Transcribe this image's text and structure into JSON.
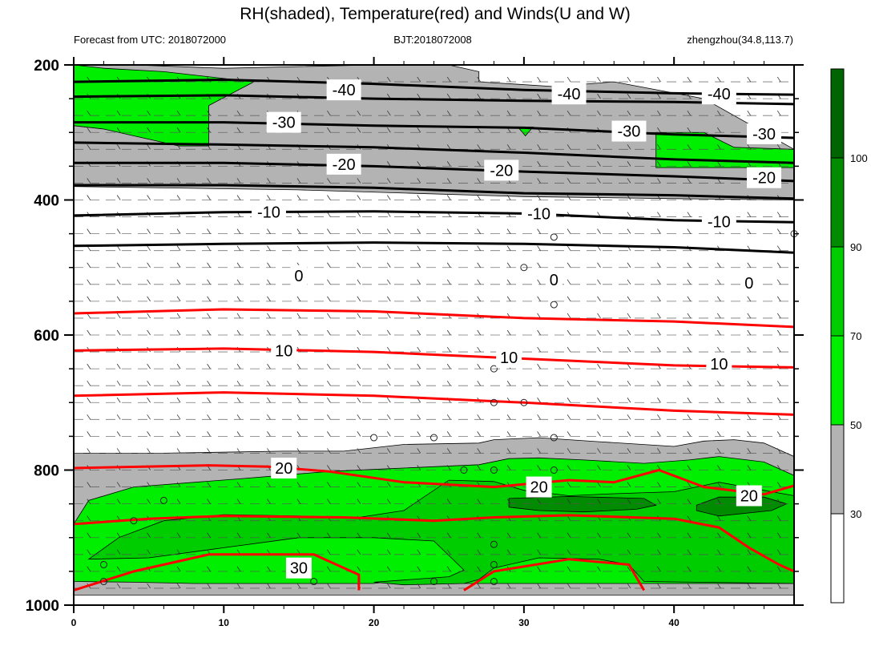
{
  "colors": {
    "rh_30_50": "#b3b3b3",
    "rh_50_70": "#00ee00",
    "rh_70_90": "#00cd00",
    "rh_90_100": "#008b00",
    "rh_100_plus": "#006400",
    "temperature": "#ff0000",
    "isotherm_cold": "#000000",
    "wind_barb": "#333333"
  },
  "chart_data": {
    "type": "heatmap",
    "title": "RH(shaded), Temperature(red) and Winds(U and W)",
    "subtitle_left": "Forecast from UTC: 2018072000",
    "subtitle_center": "BJT:2018072008",
    "subtitle_right": "zhengzhou(34.8,113.7)",
    "xlim": [
      0,
      48
    ],
    "ylim": [
      1000,
      200
    ],
    "x_ticks": [
      "0",
      "10",
      "20",
      "30",
      "40"
    ],
    "y_ticks": [
      "200",
      "400",
      "600",
      "800",
      "1000"
    ],
    "colorbar": {
      "levels": [
        "30",
        "50",
        "70",
        "90",
        "100"
      ],
      "colors": [
        "#ffffff",
        "#b3b3b3",
        "#00ee00",
        "#00cd00",
        "#008b00",
        "#006400"
      ]
    },
    "rh_regions": [
      {
        "level": "30-50",
        "points": [
          [
            0,
            200
          ],
          [
            4,
            200
          ],
          [
            10,
            205
          ],
          [
            20,
            200
          ],
          [
            25,
            200
          ],
          [
            27,
            210
          ],
          [
            27,
            225
          ],
          [
            32,
            232
          ],
          [
            36,
            225
          ],
          [
            42,
            250
          ],
          [
            48,
            325
          ],
          [
            48,
            400
          ],
          [
            40,
            398
          ],
          [
            30,
            395
          ],
          [
            15,
            385
          ],
          [
            0,
            380
          ]
        ]
      },
      {
        "level": "30-50",
        "points": [
          [
            0,
            985
          ],
          [
            0,
            775
          ],
          [
            6,
            775
          ],
          [
            14,
            772
          ],
          [
            18,
            772
          ],
          [
            22,
            762
          ],
          [
            27,
            760
          ],
          [
            28,
            755
          ],
          [
            31,
            752
          ],
          [
            35,
            758
          ],
          [
            40,
            765
          ],
          [
            42,
            757
          ],
          [
            44,
            755
          ],
          [
            46,
            760
          ],
          [
            48,
            780
          ],
          [
            48,
            985
          ]
        ]
      },
      {
        "level": "50-70",
        "points": [
          [
            0,
            200
          ],
          [
            2,
            205
          ],
          [
            6,
            210
          ],
          [
            12,
            225
          ],
          [
            9,
            260
          ],
          [
            9,
            320
          ],
          [
            7,
            320
          ],
          [
            2,
            295
          ],
          [
            0,
            290
          ]
        ]
      },
      {
        "level": "50-70",
        "points": [
          [
            29.6,
            292
          ],
          [
            30.6,
            292
          ],
          [
            30.1,
            305
          ]
        ]
      },
      {
        "level": "50-70",
        "points": [
          [
            38.8,
            300
          ],
          [
            42,
            300
          ],
          [
            44,
            322
          ],
          [
            48,
            325
          ],
          [
            48,
            352
          ],
          [
            44,
            352
          ],
          [
            38.8,
            352
          ]
        ]
      },
      {
        "level": "50-70",
        "points": [
          [
            0,
            880
          ],
          [
            1,
            845
          ],
          [
            4,
            825
          ],
          [
            11,
            813
          ],
          [
            17,
            802
          ],
          [
            21,
            798
          ],
          [
            27,
            792
          ],
          [
            29,
            783
          ],
          [
            31,
            782
          ],
          [
            34,
            785
          ],
          [
            38,
            790
          ],
          [
            41,
            785
          ],
          [
            43,
            780
          ],
          [
            46,
            788
          ],
          [
            48,
            808
          ],
          [
            48,
            968
          ],
          [
            44,
            968
          ],
          [
            38,
            968
          ],
          [
            30,
            968
          ],
          [
            26,
            968
          ],
          [
            24,
            965
          ],
          [
            21,
            965
          ],
          [
            20,
            968
          ],
          [
            14,
            968
          ],
          [
            8,
            968
          ],
          [
            4,
            966
          ],
          [
            0,
            965
          ]
        ]
      },
      {
        "level": "70-90",
        "points": [
          [
            1,
            932
          ],
          [
            3,
            900
          ],
          [
            6,
            875
          ],
          [
            10,
            866
          ],
          [
            15,
            868
          ],
          [
            19,
            870
          ],
          [
            22,
            860
          ],
          [
            25,
            815
          ],
          [
            28,
            817
          ],
          [
            30,
            830
          ],
          [
            33,
            838
          ],
          [
            36,
            835
          ],
          [
            40,
            832
          ],
          [
            43,
            818
          ],
          [
            46,
            830
          ],
          [
            48,
            838
          ],
          [
            48,
            968
          ],
          [
            38,
            965
          ],
          [
            37,
            940
          ],
          [
            35,
            932
          ],
          [
            31,
            930
          ],
          [
            28,
            945
          ],
          [
            27,
            962
          ],
          [
            26,
            968
          ],
          [
            22,
            970
          ],
          [
            20,
            966
          ],
          [
            25,
            958
          ],
          [
            26,
            948
          ],
          [
            24,
            905
          ],
          [
            20,
            900
          ],
          [
            15,
            900
          ],
          [
            10,
            915
          ],
          [
            5,
            930
          ]
        ]
      },
      {
        "level": "90-100",
        "points": [
          [
            29,
            842
          ],
          [
            33,
            839
          ],
          [
            38,
            842
          ],
          [
            38.8,
            852
          ],
          [
            37.5,
            858
          ],
          [
            34,
            862
          ],
          [
            31,
            860
          ],
          [
            29,
            855
          ]
        ]
      },
      {
        "level": "90-100",
        "points": [
          [
            41.5,
            852
          ],
          [
            43,
            840
          ],
          [
            46,
            840
          ],
          [
            47.5,
            850
          ],
          [
            46.5,
            860
          ],
          [
            43,
            868
          ],
          [
            41.5,
            860
          ]
        ]
      }
    ],
    "temperature_contours": [
      {
        "value": -40,
        "color": "black",
        "points": [
          [
            0,
            225
          ],
          [
            10,
            222
          ],
          [
            20,
            228
          ],
          [
            30,
            237
          ],
          [
            40,
            242
          ],
          [
            48,
            244
          ]
        ]
      },
      {
        "value": -40,
        "color": "black",
        "points": [
          [
            0,
            247
          ],
          [
            10,
            245
          ],
          [
            20,
            250
          ],
          [
            30,
            253
          ],
          [
            40,
            255
          ],
          [
            48,
            258
          ]
        ]
      },
      {
        "value": -30,
        "color": "black",
        "points": [
          [
            0,
            285
          ],
          [
            10,
            285
          ],
          [
            20,
            290
          ],
          [
            30,
            293
          ],
          [
            40,
            303
          ],
          [
            48,
            308
          ]
        ]
      },
      {
        "value": -30,
        "color": "black",
        "points": [
          [
            0,
            315
          ],
          [
            10,
            318
          ],
          [
            20,
            322
          ],
          [
            30,
            330
          ],
          [
            40,
            340
          ],
          [
            48,
            345
          ]
        ]
      },
      {
        "value": -20,
        "color": "black",
        "points": [
          [
            0,
            345
          ],
          [
            10,
            345
          ],
          [
            20,
            350
          ],
          [
            30,
            358
          ],
          [
            40,
            365
          ],
          [
            48,
            372
          ]
        ]
      },
      {
        "value": -20,
        "color": "black",
        "points": [
          [
            0,
            378
          ],
          [
            10,
            378
          ],
          [
            20,
            382
          ],
          [
            30,
            390
          ],
          [
            40,
            393
          ],
          [
            48,
            398
          ]
        ]
      },
      {
        "value": -10,
        "color": "black",
        "points": [
          [
            0,
            423
          ],
          [
            10,
            418
          ],
          [
            20,
            417
          ],
          [
            30,
            420
          ],
          [
            40,
            430
          ],
          [
            48,
            433
          ]
        ]
      },
      {
        "value": -10,
        "color": "black",
        "points": [
          [
            0,
            468
          ],
          [
            10,
            465
          ],
          [
            20,
            463
          ],
          [
            30,
            465
          ],
          [
            40,
            470
          ],
          [
            48,
            478
          ]
        ]
      },
      {
        "value": 10,
        "color": "red",
        "points": [
          [
            0,
            568
          ],
          [
            10,
            562
          ],
          [
            20,
            565
          ],
          [
            30,
            575
          ],
          [
            40,
            580
          ],
          [
            48,
            588
          ]
        ]
      },
      {
        "value": 10,
        "color": "red",
        "points": [
          [
            0,
            623
          ],
          [
            10,
            620
          ],
          [
            20,
            625
          ],
          [
            30,
            635
          ],
          [
            40,
            645
          ],
          [
            48,
            648
          ]
        ]
      },
      {
        "value": 10,
        "color": "red",
        "points": [
          [
            0,
            690
          ],
          [
            10,
            685
          ],
          [
            20,
            690
          ],
          [
            30,
            700
          ],
          [
            40,
            712
          ],
          [
            48,
            718
          ]
        ]
      },
      {
        "value": 20,
        "color": "red",
        "points": [
          [
            0,
            797
          ],
          [
            9,
            793
          ],
          [
            13,
            795
          ],
          [
            17,
            802
          ],
          [
            22,
            818
          ],
          [
            28,
            825
          ],
          [
            33,
            815
          ],
          [
            36,
            818
          ],
          [
            39,
            800
          ],
          [
            42,
            825
          ],
          [
            46,
            836
          ],
          [
            48,
            823
          ]
        ]
      },
      {
        "value": 20,
        "color": "red",
        "points": [
          [
            0,
            880
          ],
          [
            5,
            872
          ],
          [
            10,
            868
          ],
          [
            18,
            870
          ],
          [
            24,
            875
          ],
          [
            28,
            870
          ],
          [
            33,
            867
          ],
          [
            40,
            872
          ],
          [
            43,
            885
          ],
          [
            45,
            915
          ],
          [
            47,
            940
          ],
          [
            48,
            950
          ]
        ]
      },
      {
        "value": 30,
        "color": "red",
        "points": [
          [
            0,
            978
          ],
          [
            4,
            950
          ],
          [
            9,
            925
          ],
          [
            16,
            925
          ],
          [
            19,
            955
          ],
          [
            19,
            978
          ]
        ]
      },
      {
        "value": 30,
        "color": "red",
        "points": [
          [
            26,
            978
          ],
          [
            28,
            950
          ],
          [
            33,
            932
          ],
          [
            37,
            940
          ],
          [
            38,
            978
          ]
        ]
      }
    ],
    "contour_labels": [
      {
        "text": "-40",
        "x": 18,
        "y": 237
      },
      {
        "text": "-40",
        "x": 33,
        "y": 243
      },
      {
        "text": "-40",
        "x": 43,
        "y": 243
      },
      {
        "text": "-30",
        "x": 14,
        "y": 285
      },
      {
        "text": "-30",
        "x": 37,
        "y": 298
      },
      {
        "text": "-30",
        "x": 46,
        "y": 302
      },
      {
        "text": "-20",
        "x": 18,
        "y": 347
      },
      {
        "text": "-20",
        "x": 28.5,
        "y": 356
      },
      {
        "text": "-20",
        "x": 46,
        "y": 367
      },
      {
        "text": "-10",
        "x": 13,
        "y": 418
      },
      {
        "text": "-10",
        "x": 31,
        "y": 420
      },
      {
        "text": "-10",
        "x": 43,
        "y": 432
      },
      {
        "text": "0",
        "x": 15,
        "y": 512
      },
      {
        "text": "0",
        "x": 32,
        "y": 518
      },
      {
        "text": "0",
        "x": 45,
        "y": 523
      },
      {
        "text": "10",
        "x": 14,
        "y": 623
      },
      {
        "text": "10",
        "x": 29,
        "y": 633
      },
      {
        "text": "10",
        "x": 43,
        "y": 643
      },
      {
        "text": "20",
        "x": 14,
        "y": 797
      },
      {
        "text": "20",
        "x": 31,
        "y": 825
      },
      {
        "text": "20",
        "x": 45,
        "y": 838
      },
      {
        "text": "30",
        "x": 15,
        "y": 945
      }
    ],
    "calm_markers": [
      [
        32,
        455
      ],
      [
        30,
        500
      ],
      [
        32,
        555
      ],
      [
        28,
        650
      ],
      [
        28,
        700
      ],
      [
        30,
        700
      ],
      [
        20,
        752
      ],
      [
        24,
        752
      ],
      [
        32,
        752
      ],
      [
        26,
        800
      ],
      [
        28,
        800
      ],
      [
        32,
        800
      ],
      [
        6,
        845
      ],
      [
        4,
        875
      ],
      [
        2,
        940
      ],
      [
        28,
        940
      ],
      [
        28,
        910
      ],
      [
        2,
        965
      ],
      [
        16,
        965
      ],
      [
        24,
        965
      ],
      [
        28,
        965
      ],
      [
        48,
        450
      ]
    ],
    "wind_levels": [
      200,
      225,
      250,
      275,
      300,
      325,
      350,
      375,
      400,
      425,
      450,
      475,
      500,
      525,
      550,
      575,
      600,
      625,
      650,
      675,
      700,
      725,
      750,
      775,
      800,
      825,
      850,
      875,
      900,
      925,
      950,
      975
    ],
    "wind_times": [
      1,
      3,
      5,
      7,
      9,
      11,
      13,
      15,
      17,
      19,
      21,
      23,
      25,
      27,
      29,
      31,
      33,
      35,
      37,
      39,
      41,
      43,
      45,
      47
    ]
  }
}
